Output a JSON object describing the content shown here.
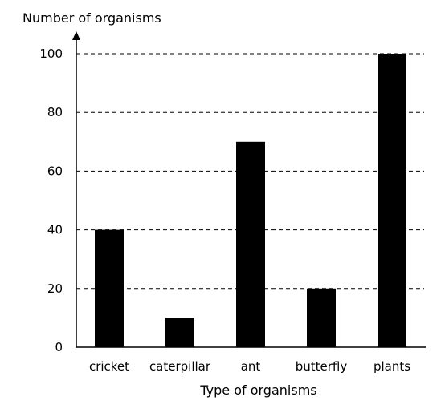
{
  "chart_data": {
    "type": "bar",
    "categories": [
      "cricket",
      "caterpillar",
      "ant",
      "butterfly",
      "plants"
    ],
    "values": [
      40,
      10,
      70,
      20,
      100
    ],
    "ylabel": "Number of organisms",
    "xlabel": "Type of organisms",
    "ylim": [
      0,
      100
    ],
    "yticks": [
      0,
      20,
      40,
      60,
      80,
      100
    ],
    "grid": "horizontal dashed",
    "bar_color": "#000000"
  }
}
